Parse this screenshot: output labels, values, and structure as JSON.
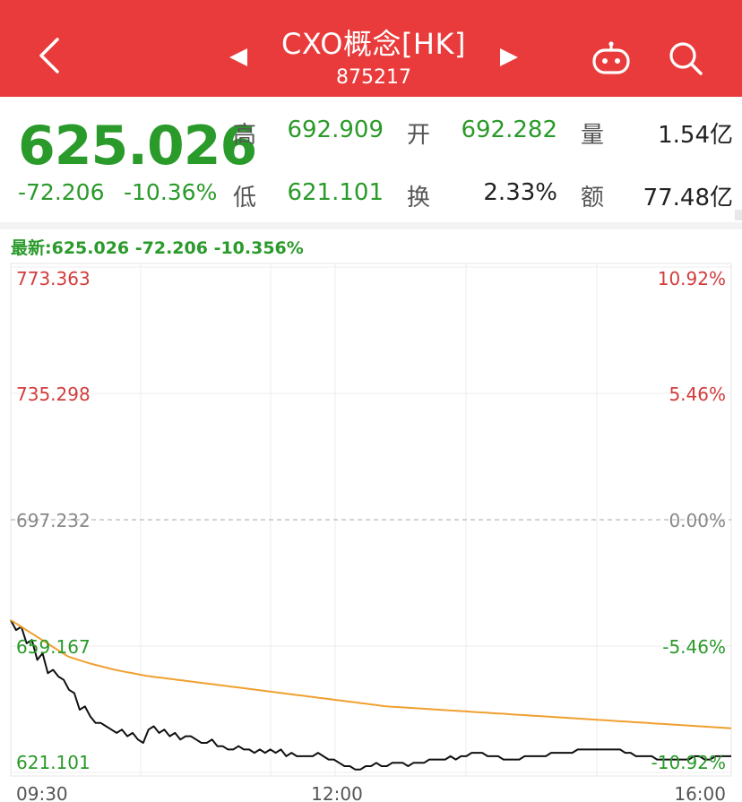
{
  "header": {
    "title": "CXO概念[HK]",
    "code": "875217",
    "background_color": "#e93b3b"
  },
  "quote": {
    "price": "625.026",
    "change": "-72.206",
    "change_pct": "-10.36%",
    "stats": {
      "high_label": "高",
      "high": "692.909",
      "open_label": "开",
      "open": "692.282",
      "volume_label": "量",
      "volume": "1.54亿",
      "low_label": "低",
      "low": "621.101",
      "turnover_label": "换",
      "turnover": "2.33%",
      "amount_label": "额",
      "amount": "77.48亿"
    }
  },
  "latest_line": "最新:625.026  -72.206  -10.356%",
  "chart_data": {
    "type": "line",
    "y_left_ticks": [
      "773.363",
      "735.298",
      "697.232",
      "659.167",
      "621.101"
    ],
    "y_right_ticks": [
      "10.92%",
      "5.46%",
      "0.00%",
      "-5.46%",
      "-10.92%"
    ],
    "x_ticks": [
      "09:30",
      "12:00",
      "16:00"
    ],
    "ylim": [
      621.101,
      773.363
    ],
    "prev_close": 697.232,
    "series": [
      {
        "color": "#111111",
        "values": [
          667,
          664,
          665,
          660,
          661,
          655,
          657,
          651,
          652,
          650,
          649,
          646,
          645,
          640,
          641,
          638,
          636,
          636,
          635,
          634,
          633,
          634,
          632,
          633,
          631,
          630,
          634,
          635,
          633,
          634,
          632,
          633,
          631,
          632,
          632,
          631,
          630,
          630,
          631,
          629,
          629,
          628,
          628,
          629,
          628,
          628,
          627,
          628,
          627,
          628,
          627,
          628,
          626,
          627,
          626,
          626,
          626,
          626,
          627,
          626,
          625,
          625,
          624,
          623,
          623,
          622,
          622,
          623,
          623,
          624,
          623,
          623,
          624,
          624,
          624,
          623,
          624,
          624,
          624,
          625,
          625,
          625,
          625,
          626,
          625,
          626,
          626,
          627,
          627,
          627,
          626,
          626,
          626,
          625,
          625,
          625,
          625,
          626,
          626,
          626,
          626,
          626,
          627,
          627,
          627,
          627,
          627,
          628,
          628,
          628,
          628,
          628,
          628,
          628,
          628,
          628,
          627,
          627,
          626,
          626,
          626,
          626,
          625,
          625,
          625,
          625,
          625,
          625,
          625,
          626,
          626,
          625,
          625,
          626,
          626,
          626,
          626
        ]
      },
      {
        "color": "#f0a030",
        "values": [
          667,
          666,
          665,
          664,
          663,
          662,
          661,
          660,
          659,
          658,
          657,
          656,
          655.5,
          655,
          654.5,
          654,
          653.6,
          653.2,
          652.8,
          652.4,
          652,
          651.7,
          651.4,
          651.1,
          650.8,
          650.5,
          650.2,
          650,
          649.8,
          649.6,
          649.4,
          649.2,
          649,
          648.8,
          648.6,
          648.4,
          648.2,
          648,
          647.8,
          647.6,
          647.4,
          647.2,
          647,
          646.8,
          646.6,
          646.4,
          646.2,
          646,
          645.8,
          645.6,
          645.4,
          645.2,
          645,
          644.8,
          644.6,
          644.4,
          644.2,
          644,
          643.8,
          643.6,
          643.4,
          643.2,
          643,
          642.8,
          642.6,
          642.4,
          642.2,
          642,
          641.8,
          641.6,
          641.4,
          641.2,
          641,
          640.9,
          640.8,
          640.7,
          640.6,
          640.5,
          640.4,
          640.3,
          640.2,
          640.1,
          640,
          639.9,
          639.8,
          639.7,
          639.6,
          639.5,
          639.4,
          639.3,
          639.2,
          639.1,
          639,
          638.9,
          638.8,
          638.7,
          638.6,
          638.5,
          638.4,
          638.3,
          638.2,
          638.1,
          638,
          637.9,
          637.8,
          637.7,
          637.6,
          637.5,
          637.4,
          637.3,
          637.2,
          637.1,
          637,
          636.9,
          636.8,
          636.7,
          636.6,
          636.5,
          636.4,
          636.3,
          636.2,
          636.1,
          636,
          635.9,
          635.8,
          635.7,
          635.6,
          635.5,
          635.4,
          635.3,
          635.2,
          635.1,
          635,
          634.9,
          634.8,
          634.7,
          634.6,
          634.5,
          634.4
        ]
      }
    ]
  }
}
